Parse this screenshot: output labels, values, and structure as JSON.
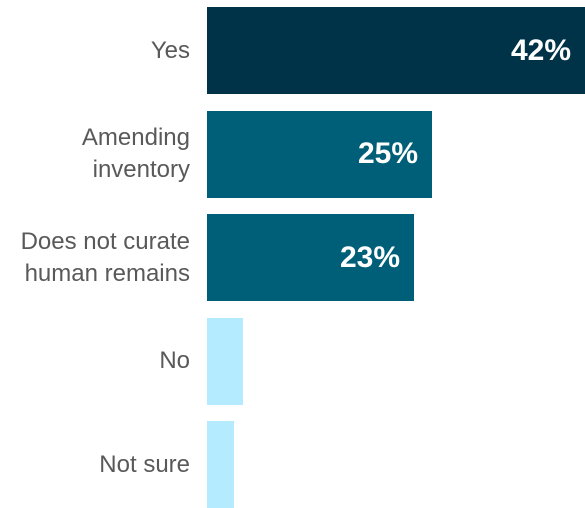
{
  "chart_data": {
    "type": "bar",
    "orientation": "horizontal",
    "categories": [
      "Yes",
      "Amending\ninventory",
      "Does not curate\nhuman remains",
      "No",
      "Not sure"
    ],
    "values": [
      42,
      25,
      23,
      4,
      3
    ],
    "value_labels": [
      "42%",
      "25%",
      "23%",
      "",
      ""
    ],
    "colors": [
      "#003347",
      "#005f78",
      "#005f78",
      "#b5ebff",
      "#b5ebff"
    ],
    "xlim": [
      0,
      42
    ],
    "title": "",
    "xlabel": "",
    "ylabel": "",
    "grid": false,
    "legend": "none"
  }
}
